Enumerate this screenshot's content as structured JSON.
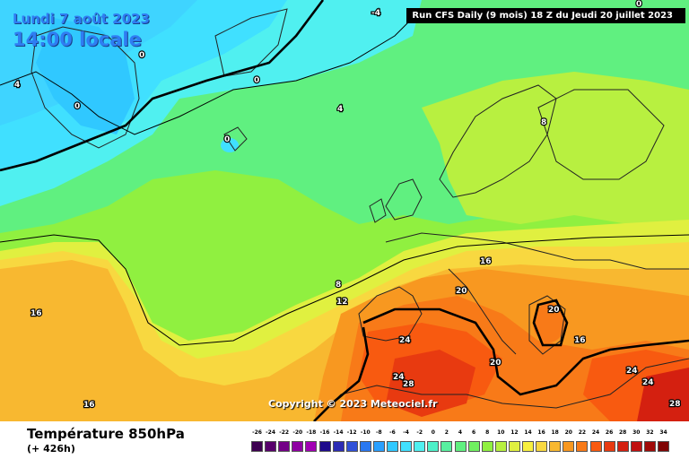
{
  "header": {
    "date": "Lundi 7 août 2023",
    "time": "14:00 locale",
    "run": "Run CFS Daily (9 mois) 18 Z du Jeudi 20 juillet 2023"
  },
  "copyright": "Copyright © 2023 Meteociel.fr",
  "footer": {
    "parameter": "Température 850hPa",
    "lead_time": "(+ 426h)"
  },
  "color_scale": {
    "values": [
      "-26",
      "-24",
      "-22",
      "-20",
      "-18",
      "-16",
      "-14",
      "-12",
      "-10",
      "-8",
      "-6",
      "-4",
      "-2",
      "0",
      "2",
      "4",
      "6",
      "8",
      "10",
      "12",
      "14",
      "16",
      "18",
      "20",
      "22",
      "24",
      "26",
      "28",
      "30",
      "32",
      "34"
    ],
    "colors": [
      "#3d0050",
      "#57006b",
      "#730087",
      "#8f00a3",
      "#a100b3",
      "#1e0a8c",
      "#2c2cb4",
      "#3050d8",
      "#2a78f0",
      "#2aa0ff",
      "#30c8ff",
      "#40e0ff",
      "#50f0f0",
      "#4cf0c8",
      "#58f0a0",
      "#60f080",
      "#70f060",
      "#90f040",
      "#b8f040",
      "#e0f040",
      "#f8f040",
      "#f8d840",
      "#f8b830",
      "#f89820",
      "#f87a18",
      "#f85a10",
      "#e83a10",
      "#d42010",
      "#c01010",
      "#a00a08",
      "#800404"
    ]
  },
  "contour_labels": [
    "-4",
    "0",
    "0",
    "0",
    "4",
    "0",
    "0",
    "4",
    "8",
    "8",
    "12",
    "16",
    "16",
    "16",
    "20",
    "20",
    "20",
    "16",
    "24",
    "24",
    "28",
    "20",
    "24",
    "24",
    "28"
  ],
  "colors": {
    "runbox_bg": "#000000",
    "title_blue": "#2f7df2"
  }
}
